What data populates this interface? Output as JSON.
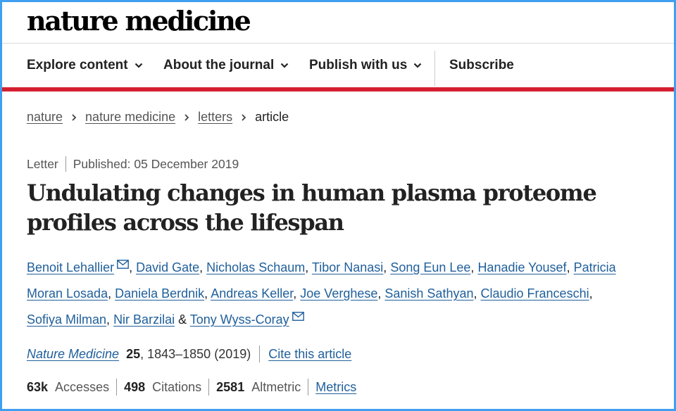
{
  "brand": {
    "title": "nature medicine"
  },
  "nav": {
    "items": [
      {
        "label": "Explore content",
        "dropdown": true
      },
      {
        "label": "About the journal",
        "dropdown": true
      },
      {
        "label": "Publish with us",
        "dropdown": true
      },
      {
        "label": "Subscribe",
        "dropdown": false
      }
    ]
  },
  "breadcrumb": {
    "items": [
      "nature",
      "nature medicine",
      "letters"
    ],
    "current": "article"
  },
  "article": {
    "type": "Letter",
    "published": "Published: 05 December 2019",
    "title_line1": "Undulating changes in human plasma proteome",
    "title_line2": "profiles across the lifespan",
    "authors": [
      "Benoit Lehallier",
      "David Gate",
      "Nicholas Schaum",
      "Tibor Nanasi",
      "Song Eun Lee",
      "Hanadie Yousef",
      "Patricia",
      "Moran Losada",
      "Daniela Berdnik",
      "Andreas Keller",
      "Joe Verghese",
      "Sanish Sathyan",
      "Claudio Franceschi",
      "Sofiya Milman",
      "Nir Barzilai",
      "Tony Wyss-Coray"
    ],
    "author_separator": ", ",
    "author_and": " & "
  },
  "citation": {
    "journal": "Nature Medicine",
    "volume": "25",
    "pages_year": ", 1843–1850 (2019)",
    "cite_link": "Cite this article"
  },
  "metrics": {
    "accesses_value": "63k",
    "accesses_label": "Accesses",
    "citations_value": "498",
    "citations_label": "Citations",
    "altmetric_value": "2581",
    "altmetric_label": "Altmetric",
    "metrics_link": "Metrics"
  },
  "colors": {
    "frame": "#3f9ff0",
    "accent_red": "#d41f2e",
    "link_blue": "#1f5f9b"
  },
  "icons": {
    "dropdown": "chevron-down-icon",
    "breadcrumb_separator": "chevron-right-icon",
    "email": "mail-icon"
  }
}
